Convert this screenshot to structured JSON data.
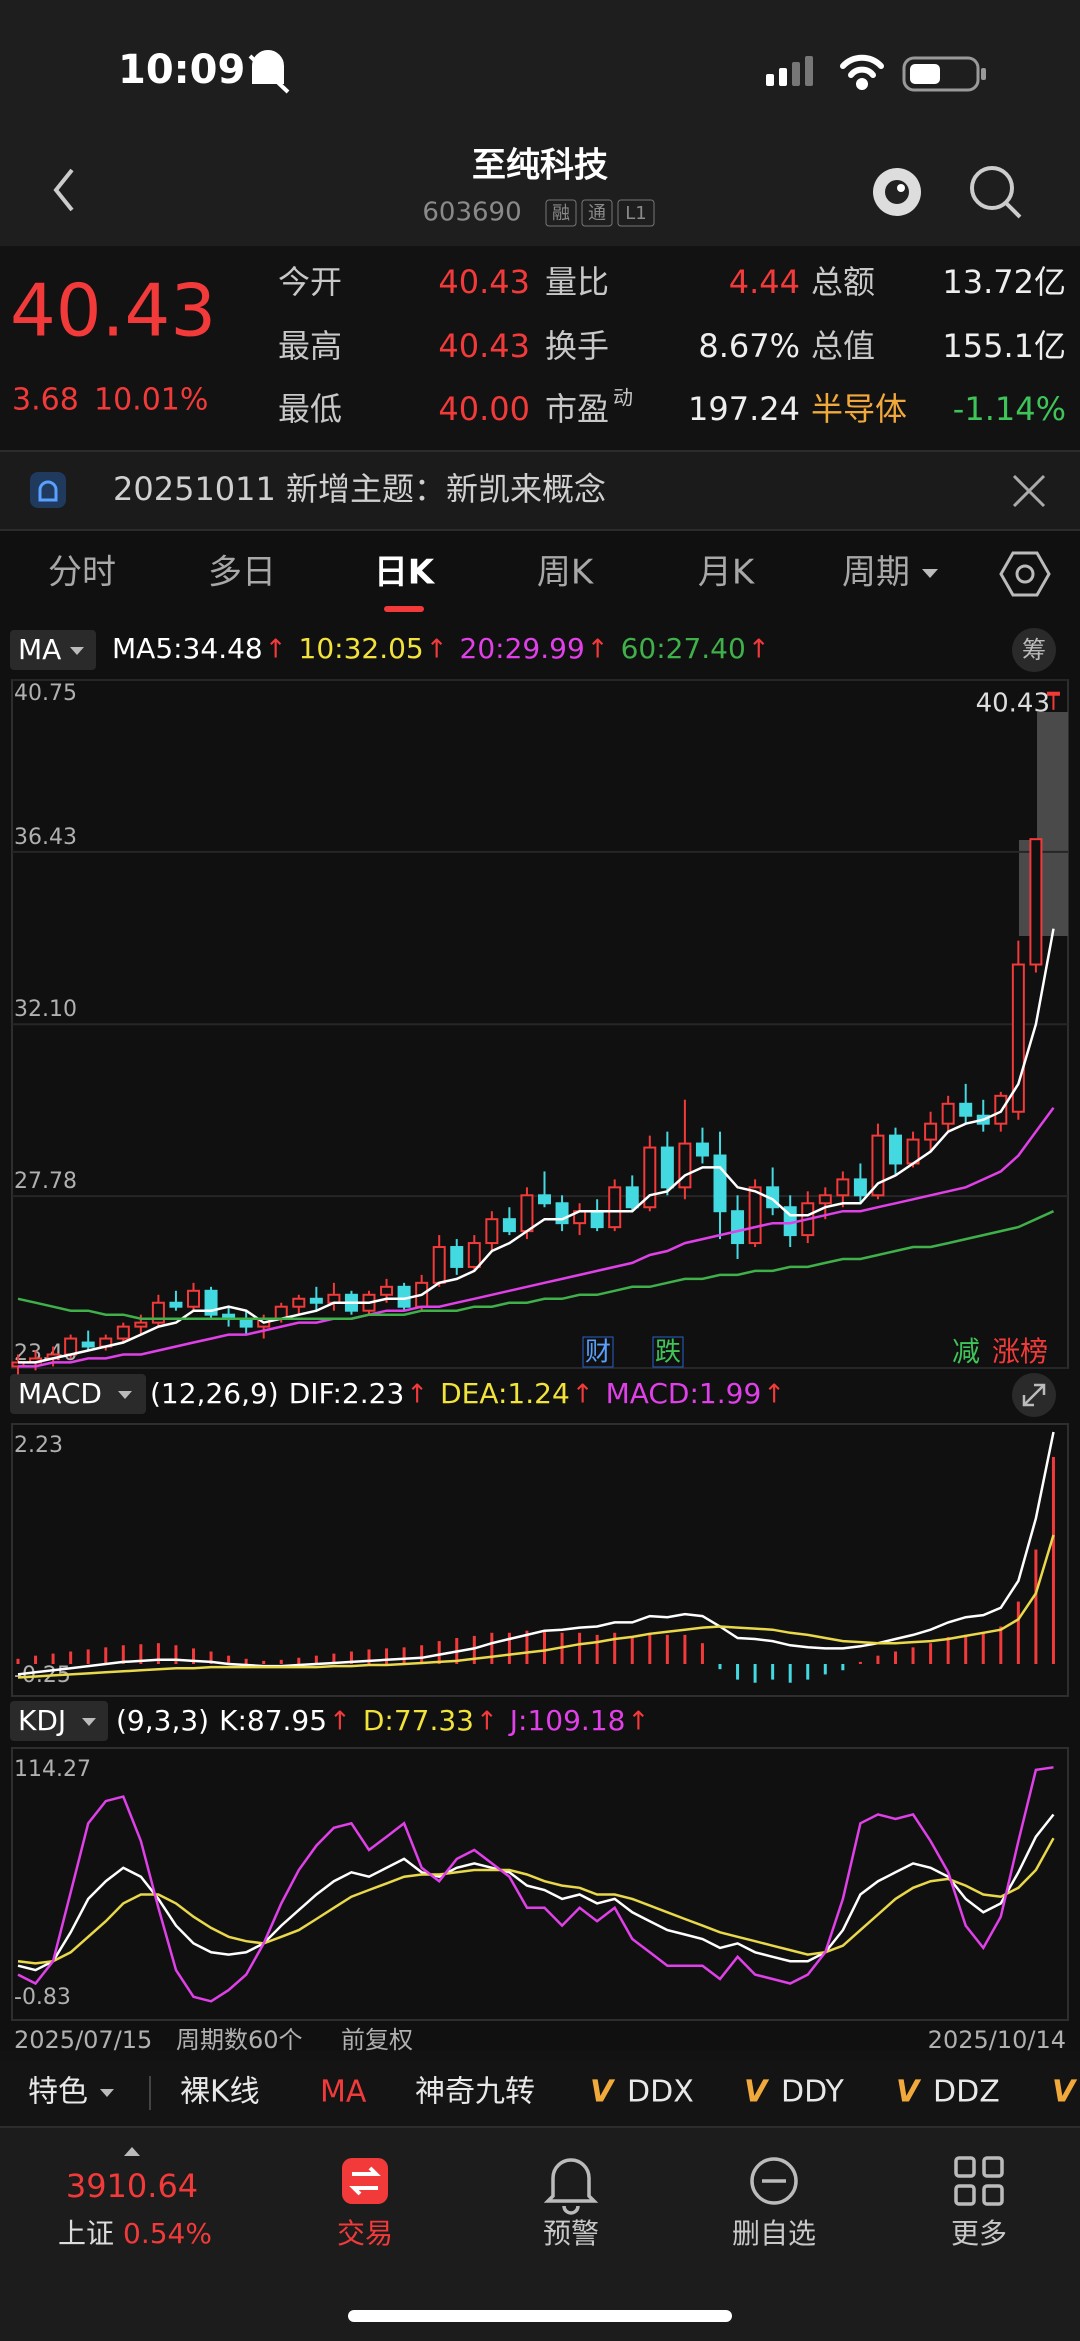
{
  "status": {
    "time": "10:09"
  },
  "header": {
    "title": "至纯科技",
    "code": "603690",
    "badges": [
      "融",
      "通",
      "L1"
    ]
  },
  "quote": {
    "price": "40.43",
    "change": "3.68",
    "change_pct": "10.01%",
    "rows": [
      [
        {
          "label": "今开",
          "value": "40.43"
        },
        {
          "label": "量比",
          "value": "4.44"
        },
        {
          "label": "总额",
          "value": "13.72亿"
        }
      ],
      [
        {
          "label": "最高",
          "value": "40.43"
        },
        {
          "label": "换手",
          "value": "8.67%"
        },
        {
          "label": "总值",
          "value": "155.1亿"
        }
      ],
      [
        {
          "label": "最低",
          "value": "40.00"
        },
        {
          "label": "市盈",
          "sup": "动",
          "value": "197.24"
        },
        {
          "label": "半导体",
          "value": "-1.14%"
        }
      ]
    ]
  },
  "notice": {
    "text": "20251011 新增主题：新凯来概念"
  },
  "tabs": [
    "分时",
    "多日",
    "日K",
    "周K",
    "月K",
    "周期"
  ],
  "chart_data": [
    {
      "type": "candlestick",
      "indicator": "MA",
      "chip_button": "筹",
      "trend": "↑",
      "last_price": "40.43",
      "events": [
        "财",
        "跌"
      ],
      "tags": [
        "减",
        "涨榜"
      ],
      "up_color": "#f23a3a",
      "down_color": "#43d9e0",
      "grid": true,
      "ylim": [
        23.46,
        40.75
      ],
      "yticks": [
        40.75,
        36.43,
        {
          "value": 32.1,
          "label": "32.10"
        },
        27.78,
        23.46
      ],
      "legend": [
        {
          "label": "MA5:34.48",
          "color": "#ffffff"
        },
        {
          "label": "10:32.05",
          "color": "#f2e33a"
        },
        {
          "label": "20:29.99",
          "color": "#e040e8"
        },
        {
          "label": "60:27.40",
          "color": "#3fb04a"
        }
      ],
      "x": [
        "2025/07/15",
        null,
        null,
        null,
        null,
        null,
        null,
        null,
        null,
        null,
        null,
        null,
        null,
        null,
        null,
        null,
        null,
        null,
        null,
        null,
        null,
        null,
        null,
        null,
        null,
        null,
        null,
        null,
        null,
        null,
        null,
        null,
        null,
        null,
        null,
        null,
        null,
        null,
        null,
        null,
        null,
        null,
        null,
        null,
        null,
        null,
        null,
        null,
        null,
        null,
        null,
        null,
        null,
        null,
        null,
        null,
        null,
        null,
        null,
        "2025/10/14"
      ],
      "ohlc": [
        [
          23.5,
          23.8,
          23.3,
          23.6
        ],
        [
          23.6,
          23.9,
          23.4,
          23.7
        ],
        [
          23.7,
          24.0,
          23.5,
          23.8
        ],
        [
          23.8,
          24.3,
          23.7,
          24.2
        ],
        [
          24.1,
          24.4,
          23.9,
          24.0
        ],
        [
          24.0,
          24.3,
          23.9,
          24.2
        ],
        [
          24.2,
          24.6,
          24.1,
          24.5
        ],
        [
          24.5,
          24.8,
          24.3,
          24.6
        ],
        [
          24.6,
          25.3,
          24.5,
          25.1
        ],
        [
          25.1,
          25.4,
          24.9,
          25.0
        ],
        [
          25.0,
          25.6,
          24.9,
          25.4
        ],
        [
          25.4,
          25.5,
          24.7,
          24.8
        ],
        [
          24.8,
          25.0,
          24.5,
          24.7
        ],
        [
          24.7,
          24.9,
          24.3,
          24.5
        ],
        [
          24.5,
          24.8,
          24.2,
          24.7
        ],
        [
          24.7,
          25.1,
          24.6,
          25.0
        ],
        [
          25.0,
          25.3,
          24.8,
          25.2
        ],
        [
          25.2,
          25.5,
          24.9,
          25.1
        ],
        [
          25.1,
          25.6,
          24.9,
          25.3
        ],
        [
          25.3,
          25.4,
          24.8,
          24.9
        ],
        [
          24.9,
          25.4,
          24.8,
          25.3
        ],
        [
          25.3,
          25.7,
          25.1,
          25.5
        ],
        [
          25.5,
          25.6,
          24.9,
          25.0
        ],
        [
          25.0,
          25.8,
          24.9,
          25.6
        ],
        [
          25.6,
          26.8,
          25.5,
          26.5
        ],
        [
          26.5,
          26.7,
          25.8,
          26.0
        ],
        [
          26.0,
          26.8,
          25.9,
          26.6
        ],
        [
          26.6,
          27.4,
          26.4,
          27.2
        ],
        [
          27.2,
          27.5,
          26.8,
          26.9
        ],
        [
          26.9,
          28.0,
          26.7,
          27.8
        ],
        [
          27.8,
          28.4,
          27.5,
          27.6
        ],
        [
          27.6,
          27.8,
          26.9,
          27.1
        ],
        [
          27.1,
          27.6,
          26.8,
          27.4
        ],
        [
          27.4,
          27.7,
          26.9,
          27.0
        ],
        [
          27.0,
          28.2,
          26.9,
          28.0
        ],
        [
          28.0,
          28.3,
          27.4,
          27.5
        ],
        [
          27.5,
          29.3,
          27.4,
          29.0
        ],
        [
          29.0,
          29.4,
          27.8,
          28.0
        ],
        [
          28.0,
          30.2,
          27.7,
          29.1
        ],
        [
          29.1,
          29.5,
          28.6,
          28.8
        ],
        [
          28.8,
          29.4,
          26.7,
          27.4
        ],
        [
          27.4,
          27.8,
          26.2,
          26.6
        ],
        [
          26.6,
          28.2,
          26.5,
          28.0
        ],
        [
          28.0,
          28.5,
          27.3,
          27.5
        ],
        [
          27.5,
          27.8,
          26.5,
          26.8
        ],
        [
          26.8,
          27.9,
          26.6,
          27.6
        ],
        [
          27.6,
          28.0,
          27.2,
          27.8
        ],
        [
          27.8,
          28.4,
          27.5,
          28.2
        ],
        [
          28.2,
          28.6,
          27.6,
          27.8
        ],
        [
          27.8,
          29.6,
          27.7,
          29.3
        ],
        [
          29.3,
          29.5,
          28.3,
          28.6
        ],
        [
          28.6,
          29.4,
          28.5,
          29.2
        ],
        [
          29.2,
          29.9,
          28.9,
          29.6
        ],
        [
          29.6,
          30.3,
          29.4,
          30.1
        ],
        [
          30.1,
          30.6,
          29.6,
          29.8
        ],
        [
          29.8,
          30.2,
          29.4,
          29.6
        ],
        [
          29.6,
          30.4,
          29.4,
          30.3
        ],
        [
          29.9,
          34.2,
          29.7,
          33.6
        ],
        [
          33.6,
          36.75,
          33.4,
          36.75
        ],
        [
          40.43,
          40.43,
          40.0,
          40.43
        ]
      ],
      "series": [
        {
          "color": "#ffffff",
          "values": [
            23.6,
            23.6,
            23.7,
            23.8,
            23.9,
            24.0,
            24.1,
            24.3,
            24.5,
            24.6,
            24.9,
            24.9,
            25.0,
            24.9,
            24.6,
            24.7,
            24.8,
            24.9,
            25.1,
            25.1,
            25.1,
            25.2,
            25.2,
            25.3,
            25.6,
            25.7,
            25.9,
            26.4,
            26.6,
            26.9,
            27.2,
            27.2,
            27.4,
            27.4,
            27.4,
            27.4,
            27.8,
            27.9,
            28.3,
            28.5,
            28.5,
            28.0,
            27.9,
            27.7,
            27.3,
            27.3,
            27.5,
            27.6,
            27.6,
            28.1,
            28.3,
            28.6,
            28.9,
            29.4,
            29.6,
            29.7,
            29.9,
            30.6,
            32.1,
            34.5
          ]
        },
        {
          "color": "#e040e8",
          "values": [
            23.5,
            23.5,
            23.6,
            23.6,
            23.7,
            23.7,
            23.8,
            23.8,
            23.9,
            24.0,
            24.1,
            24.2,
            24.3,
            24.3,
            24.4,
            24.5,
            24.6,
            24.6,
            24.7,
            24.7,
            24.8,
            24.9,
            24.9,
            25.0,
            25.0,
            25.1,
            25.2,
            25.3,
            25.4,
            25.5,
            25.6,
            25.7,
            25.8,
            25.9,
            26.0,
            26.1,
            26.3,
            26.4,
            26.6,
            26.7,
            26.8,
            26.9,
            27.0,
            27.1,
            27.1,
            27.2,
            27.3,
            27.4,
            27.4,
            27.5,
            27.6,
            27.7,
            27.8,
            27.9,
            28.0,
            28.2,
            28.4,
            28.8,
            29.4,
            30.0
          ]
        },
        {
          "color": "#3fb04a",
          "values": [
            25.2,
            25.1,
            25.0,
            24.9,
            24.9,
            24.8,
            24.8,
            24.7,
            24.7,
            24.7,
            24.7,
            24.7,
            24.7,
            24.7,
            24.7,
            24.7,
            24.7,
            24.7,
            24.7,
            24.7,
            24.8,
            24.8,
            24.8,
            24.9,
            24.9,
            24.9,
            25.0,
            25.0,
            25.1,
            25.1,
            25.2,
            25.2,
            25.3,
            25.3,
            25.4,
            25.5,
            25.5,
            25.6,
            25.7,
            25.7,
            25.8,
            25.8,
            25.9,
            25.9,
            26.0,
            26.0,
            26.1,
            26.2,
            26.2,
            26.3,
            26.4,
            26.5,
            26.5,
            26.6,
            26.7,
            26.8,
            26.9,
            27.0,
            27.2,
            27.4
          ]
        }
      ]
    },
    {
      "type": "macd",
      "indicator": "MACD",
      "params": "(12,26,9)",
      "trend": "↑",
      "ylim": [
        -0.25,
        2.23
      ],
      "yticks": [
        2.23,
        -0.25
      ],
      "grid": false,
      "legend": [
        {
          "label": "DIF:2.23",
          "color": "#ffffff"
        },
        {
          "label": "DEA:1.24",
          "color": "#f2e33a"
        },
        {
          "label": "MACD:1.99",
          "color": "#e040e8"
        }
      ],
      "bars": {
        "up_color": "#f23a3a",
        "down_color": "#43d9e0",
        "values": [
          0.05,
          0.08,
          0.1,
          0.12,
          0.14,
          0.16,
          0.18,
          0.19,
          0.2,
          0.18,
          0.15,
          0.12,
          0.08,
          0.05,
          0.03,
          0.04,
          0.06,
          0.08,
          0.1,
          0.12,
          0.14,
          0.15,
          0.16,
          0.18,
          0.22,
          0.25,
          0.27,
          0.3,
          0.3,
          0.32,
          0.32,
          0.3,
          0.3,
          0.28,
          0.3,
          0.26,
          0.3,
          0.28,
          0.28,
          0.2,
          -0.05,
          -0.15,
          -0.18,
          -0.15,
          -0.18,
          -0.15,
          -0.1,
          -0.06,
          0.02,
          0.08,
          0.12,
          0.16,
          0.2,
          0.26,
          0.28,
          0.3,
          0.36,
          0.6,
          1.1,
          1.99
        ]
      },
      "series": [
        {
          "color": "#ffffff",
          "values": [
            -0.1,
            -0.08,
            -0.06,
            -0.04,
            -0.02,
            0.0,
            0.02,
            0.03,
            0.04,
            0.04,
            0.03,
            0.02,
            0.0,
            -0.01,
            -0.02,
            -0.02,
            -0.01,
            0.0,
            0.01,
            0.02,
            0.03,
            0.04,
            0.05,
            0.06,
            0.09,
            0.12,
            0.15,
            0.2,
            0.24,
            0.28,
            0.32,
            0.33,
            0.35,
            0.36,
            0.4,
            0.4,
            0.46,
            0.45,
            0.48,
            0.46,
            0.36,
            0.25,
            0.24,
            0.22,
            0.18,
            0.16,
            0.15,
            0.15,
            0.17,
            0.2,
            0.24,
            0.28,
            0.33,
            0.4,
            0.45,
            0.47,
            0.54,
            0.8,
            1.4,
            2.23
          ]
        },
        {
          "color": "#e8d84a",
          "values": [
            -0.13,
            -0.12,
            -0.11,
            -0.1,
            -0.09,
            -0.08,
            -0.07,
            -0.06,
            -0.05,
            -0.04,
            -0.04,
            -0.03,
            -0.03,
            -0.03,
            -0.03,
            -0.03,
            -0.03,
            -0.03,
            -0.02,
            -0.02,
            -0.01,
            -0.01,
            0.0,
            0.01,
            0.02,
            0.03,
            0.05,
            0.07,
            0.09,
            0.11,
            0.13,
            0.16,
            0.19,
            0.21,
            0.24,
            0.26,
            0.29,
            0.31,
            0.33,
            0.35,
            0.36,
            0.35,
            0.34,
            0.33,
            0.3,
            0.28,
            0.25,
            0.22,
            0.21,
            0.2,
            0.2,
            0.21,
            0.22,
            0.24,
            0.27,
            0.3,
            0.33,
            0.43,
            0.68,
            1.24
          ]
        }
      ]
    },
    {
      "type": "kdj",
      "indicator": "KDJ",
      "params": "(9,3,3)",
      "trend": "↑",
      "ylim": [
        -0.83,
        114.27
      ],
      "yticks": [
        114.27,
        -0.83
      ],
      "grid": false,
      "legend": [
        {
          "label": "K:87.95",
          "color": "#ffffff"
        },
        {
          "label": "D:77.33",
          "color": "#f2e33a"
        },
        {
          "label": "J:109.18",
          "color": "#e040e8"
        }
      ],
      "series": [
        {
          "color": "#ffffff",
          "values": [
            20,
            18,
            22,
            35,
            50,
            58,
            64,
            60,
            50,
            38,
            30,
            26,
            25,
            26,
            30,
            38,
            45,
            52,
            58,
            62,
            60,
            64,
            68,
            62,
            60,
            64,
            66,
            64,
            62,
            56,
            54,
            50,
            52,
            48,
            50,
            44,
            40,
            36,
            34,
            32,
            28,
            30,
            26,
            24,
            22,
            22,
            26,
            36,
            52,
            58,
            62,
            66,
            64,
            60,
            50,
            44,
            48,
            62,
            78,
            87.95
          ]
        },
        {
          "color": "#e8d84a",
          "values": [
            22,
            21,
            22,
            26,
            33,
            40,
            48,
            52,
            52,
            48,
            42,
            37,
            33,
            31,
            30,
            33,
            36,
            41,
            46,
            51,
            54,
            57,
            60,
            61,
            61,
            62,
            63,
            63,
            63,
            61,
            58,
            56,
            55,
            52,
            52,
            50,
            47,
            44,
            41,
            38,
            35,
            33,
            31,
            29,
            27,
            25,
            26,
            29,
            36,
            43,
            50,
            55,
            58,
            59,
            56,
            52,
            51,
            55,
            63,
            77.33
          ]
        },
        {
          "color": "#e040e8",
          "values": [
            16,
            12,
            22,
            53,
            84,
            94,
            96,
            76,
            46,
            18,
            6,
            4,
            9,
            16,
            30,
            48,
            63,
            74,
            82,
            84,
            72,
            78,
            84,
            64,
            58,
            68,
            72,
            66,
            60,
            46,
            46,
            38,
            46,
            40,
            46,
            32,
            26,
            20,
            20,
            20,
            14,
            24,
            16,
            14,
            12,
            16,
            26,
            50,
            84,
            88,
            86,
            88,
            76,
            62,
            38,
            28,
            42,
            76,
            108,
            109.18
          ]
        }
      ]
    }
  ],
  "chart_footer": {
    "count": "周期数60个",
    "adjust": "前复权"
  },
  "indicator_bar": {
    "items": [
      "特色",
      "裸K线",
      "MA",
      "神奇九转",
      "DDX",
      "DDY",
      "DDZ"
    ],
    "v_mark": "V"
  },
  "bottom_nav": {
    "index_value": "3910.64",
    "index_name": "上证",
    "index_change": "0.54%",
    "tabs": [
      "交易",
      "预警",
      "删自选",
      "更多"
    ]
  }
}
